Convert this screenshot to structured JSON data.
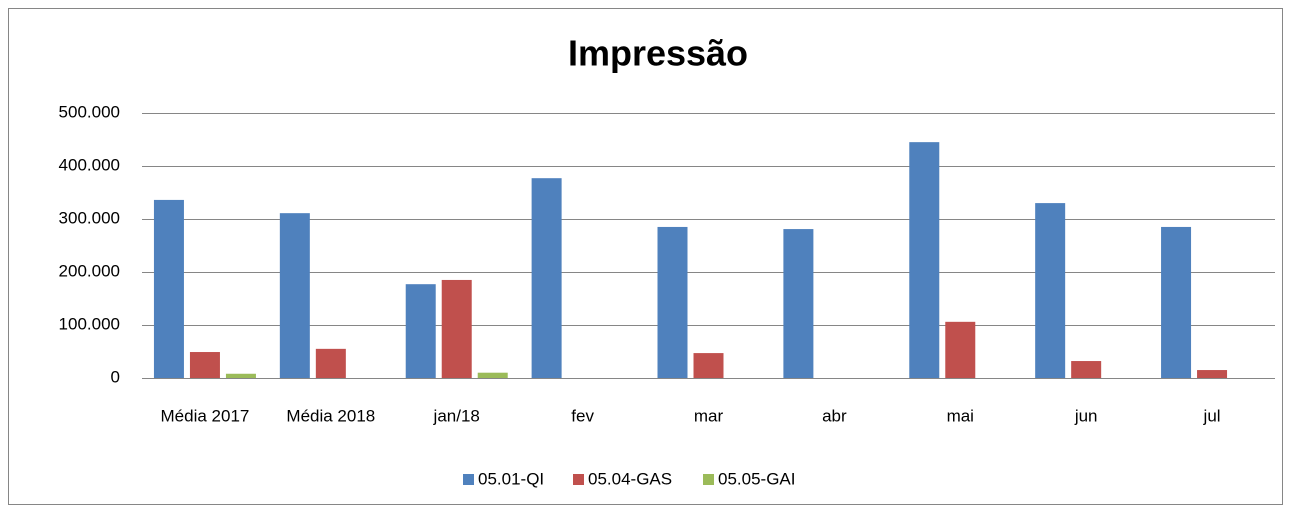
{
  "chart_data": {
    "type": "bar",
    "title": "Impressão",
    "categories": [
      "Média 2017",
      "Média 2018",
      "jan/18",
      "fev",
      "mar",
      "abr",
      "mai",
      "jun",
      "jul"
    ],
    "series": [
      {
        "name": "05.01-QI",
        "color": "#4f81bd",
        "values": [
          336000,
          311000,
          177000,
          377000,
          285000,
          281000,
          445000,
          330000,
          285000
        ]
      },
      {
        "name": "05.04-GAS",
        "color": "#c0504d",
        "values": [
          49000,
          55000,
          185000,
          0,
          47000,
          0,
          106000,
          32000,
          15000
        ]
      },
      {
        "name": "05.05-GAI",
        "color": "#9bbb59",
        "values": [
          8000,
          0,
          10000,
          0,
          0,
          0,
          0,
          0,
          0
        ]
      }
    ],
    "ylim": [
      0,
      500000
    ],
    "yticks": [
      0,
      {
        "value": 100000,
        "label": "100.000"
      },
      {
        "value": 200000,
        "label": "200.000"
      },
      {
        "value": 300000,
        "label": "300.000"
      },
      {
        "value": 400000,
        "label": "400.000"
      },
      {
        "value": 500000,
        "label": "500.000"
      }
    ],
    "grid": true,
    "legend": "bottom"
  }
}
